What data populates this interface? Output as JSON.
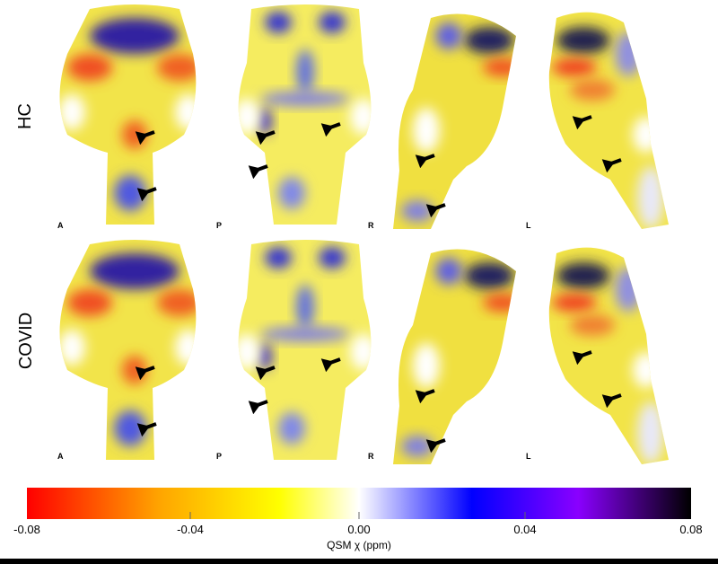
{
  "rows": [
    {
      "label": "HC"
    },
    {
      "label": "COVID"
    }
  ],
  "views": [
    {
      "label": "A"
    },
    {
      "label": "P"
    },
    {
      "label": "R"
    },
    {
      "label": "L"
    }
  ],
  "colorbar": {
    "title": "QSM χ (ppm)",
    "ticks": [
      "-0.08",
      "-0.04",
      "0.00",
      "0.04",
      "0.08"
    ],
    "range": [
      -0.08,
      0.08
    ],
    "colors": [
      "#ff0000",
      "#ffa500",
      "#ffff00",
      "#ffffff",
      "#0000ff",
      "#8a00ff",
      "#000000"
    ]
  }
}
